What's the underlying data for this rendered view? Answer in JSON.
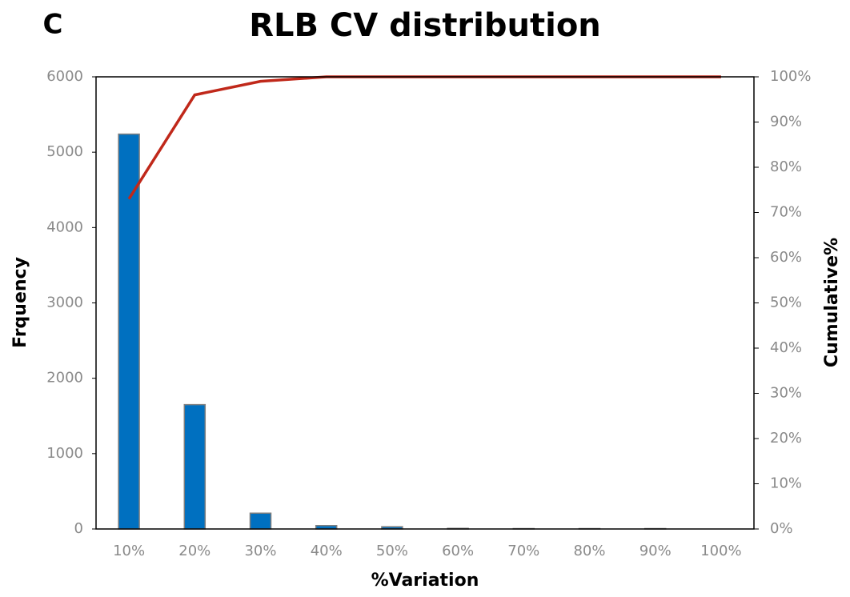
{
  "chart_data": {
    "type": "combo",
    "panel_label": "C",
    "title": "RLB CV distribution",
    "x_label": "%Variation",
    "y_label": "Frquency",
    "y2_label": "Cumulative%",
    "categories": [
      "10%",
      "20%",
      "30%",
      "40%",
      "50%",
      "60%",
      "70%",
      "80%",
      "90%",
      "100%"
    ],
    "series": [
      {
        "type": "bar",
        "color": "#0070c0",
        "values": [
          5240,
          1650,
          210,
          45,
          30,
          8,
          5,
          5,
          5,
          0
        ]
      },
      {
        "type": "line",
        "color": "#c0281a",
        "axis": "y2",
        "values": [
          73,
          96,
          99,
          100,
          100,
          100,
          100,
          100,
          100,
          100
        ]
      }
    ],
    "ylim": [
      0,
      6000
    ],
    "yticks": [
      0,
      1000,
      2000,
      3000,
      4000,
      5000,
      6000
    ],
    "y2lim": [
      0,
      100
    ],
    "y2ticks": [
      {
        "value": 0,
        "label": "0%"
      },
      {
        "value": 10,
        "label": "10%"
      },
      {
        "value": 20,
        "label": "20%"
      },
      {
        "value": 30,
        "label": "30%"
      },
      {
        "value": 40,
        "label": "40%"
      },
      {
        "value": 50,
        "label": "50%"
      },
      {
        "value": 60,
        "label": "60%"
      },
      {
        "value": 70,
        "label": "70%"
      },
      {
        "value": 80,
        "label": "80%"
      },
      {
        "value": 90,
        "label": "90%"
      },
      {
        "value": 100,
        "label": "100%"
      }
    ],
    "grid": false
  }
}
